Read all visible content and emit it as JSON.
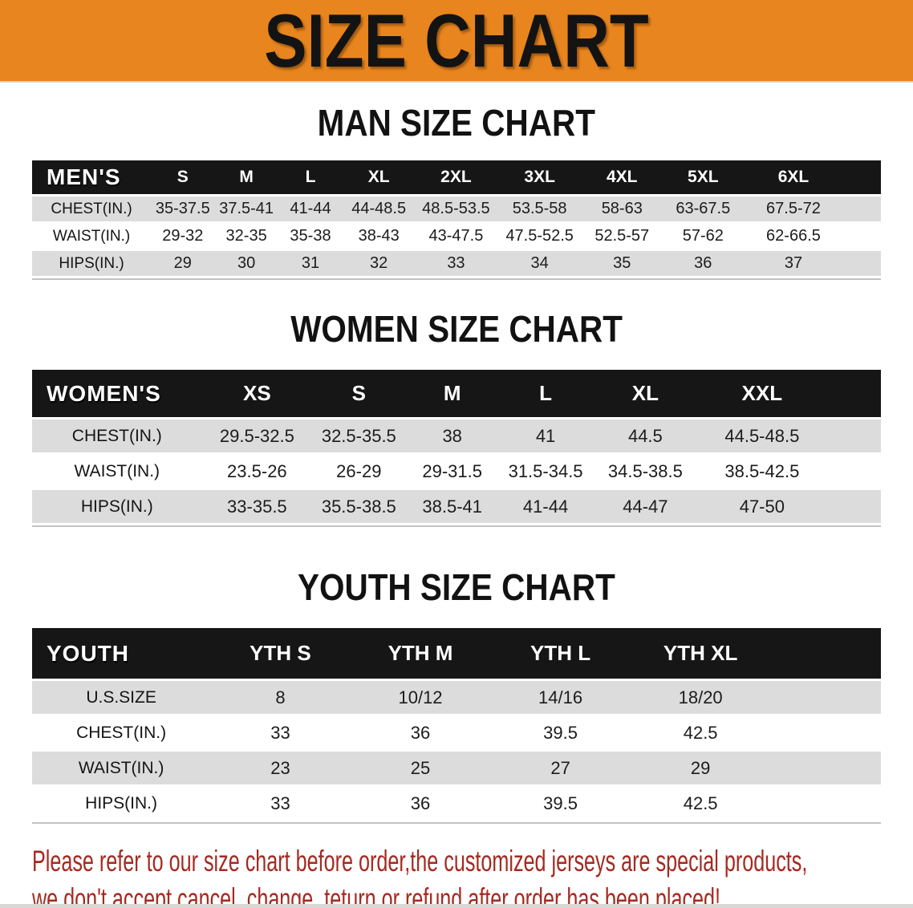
{
  "banner": {
    "title": "SIZE CHART"
  },
  "sections": [
    {
      "title": "MAN SIZE CHART",
      "table": {
        "header_label": "MEN'S",
        "columns": [
          "S",
          "M",
          "L",
          "XL",
          "2XL",
          "3XL",
          "4XL",
          "5XL",
          "6XL"
        ],
        "rows": [
          {
            "label": "CHEST(IN.)",
            "values": [
              "35-37.5",
              "37.5-41",
              "41-44",
              "44-48.5",
              "48.5-53.5",
              "53.5-58",
              "58-63",
              "63-67.5",
              "67.5-72"
            ]
          },
          {
            "label": "WAIST(IN.)",
            "values": [
              "29-32",
              "32-35",
              "35-38",
              "38-43",
              "43-47.5",
              "47.5-52.5",
              "52.5-57",
              "57-62",
              "62-66.5"
            ]
          },
          {
            "label": "HIPS(IN.)",
            "values": [
              "29",
              "30",
              "31",
              "32",
              "33",
              "34",
              "35",
              "36",
              "37"
            ]
          }
        ]
      }
    },
    {
      "title": "WOMEN SIZE CHART",
      "table": {
        "header_label": "WOMEN'S",
        "columns": [
          "XS",
          "S",
          "M",
          "L",
          "XL",
          "XXL"
        ],
        "rows": [
          {
            "label": "CHEST(IN.)",
            "values": [
              "29.5-32.5",
              "32.5-35.5",
              "38",
              "41",
              "44.5",
              "44.5-48.5"
            ]
          },
          {
            "label": "WAIST(IN.)",
            "values": [
              "23.5-26",
              "26-29",
              "29-31.5",
              "31.5-34.5",
              "34.5-38.5",
              "38.5-42.5"
            ]
          },
          {
            "label": "HIPS(IN.)",
            "values": [
              "33-35.5",
              "35.5-38.5",
              "38.5-41",
              "41-44",
              "44-47",
              "47-50"
            ]
          }
        ]
      }
    },
    {
      "title": "YOUTH SIZE CHART",
      "table": {
        "header_label": "YOUTH",
        "columns": [
          "YTH S",
          "YTH M",
          "YTH L",
          "YTH XL"
        ],
        "rows": [
          {
            "label": "U.S.SIZE",
            "values": [
              "8",
              "10/12",
              "14/16",
              "18/20"
            ]
          },
          {
            "label": "CHEST(IN.)",
            "values": [
              "33",
              "36",
              "39.5",
              "42.5"
            ]
          },
          {
            "label": "WAIST(IN.)",
            "values": [
              "23",
              "25",
              "27",
              "29"
            ]
          },
          {
            "label": "HIPS(IN.)",
            "values": [
              "33",
              "36",
              "39.5",
              "42.5"
            ]
          }
        ]
      }
    }
  ],
  "footer": {
    "line1": "Please refer to our size chart before order,the customized jerseys are special products,",
    "line2": "we don't accept cancel, change, teturn or refund after order has been placed!"
  },
  "colors": {
    "banner_bg": "#E8851E",
    "table_header_bg": "#161616",
    "row_alt_bg": "#DCDCDC",
    "footer_text": "#A52A21"
  }
}
